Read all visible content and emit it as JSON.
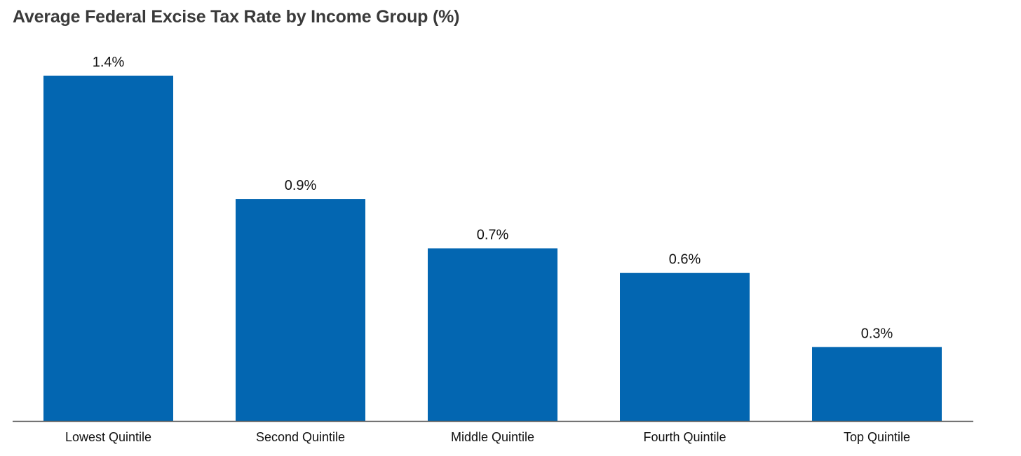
{
  "title": "Average Federal Excise Tax Rate by Income Group (%)",
  "colors": {
    "bar": "#0366b1",
    "axis": "#555555",
    "text": "#111111"
  },
  "chart_data": {
    "type": "bar",
    "title": "Average Federal Excise Tax Rate by Income Group (%)",
    "xlabel": "",
    "ylabel": "",
    "categories": [
      "Lowest Quintile",
      "Second Quintile",
      "Middle Quintile",
      "Fourth Quintile",
      "Top Quintile"
    ],
    "values": [
      1.4,
      0.9,
      0.7,
      0.6,
      0.3
    ],
    "data_labels": [
      "1.4%",
      "0.9%",
      "0.7%",
      "0.6%",
      "0.3%"
    ],
    "ylim": [
      0,
      1.4
    ],
    "grid": false,
    "legend": "none"
  }
}
